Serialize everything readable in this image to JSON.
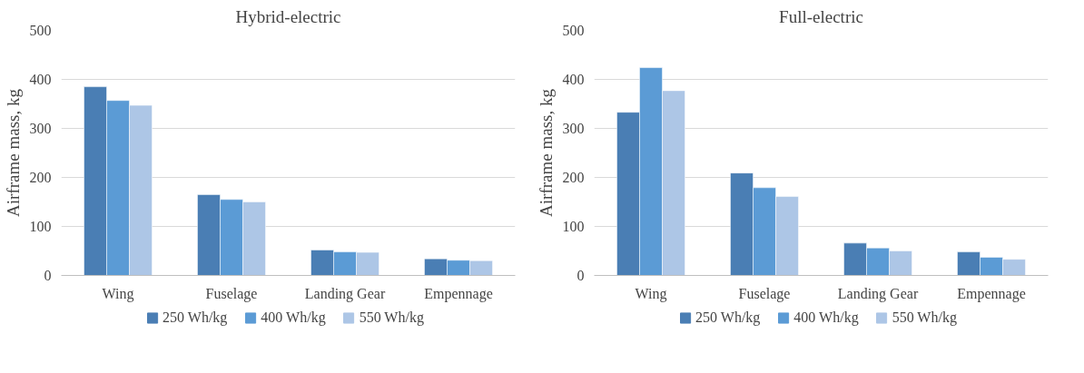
{
  "chart_data": [
    {
      "type": "bar",
      "title": "Hybrid-electric",
      "ylabel": "Airframe mass, kg",
      "categories": [
        "Wing",
        "Fuselage",
        "Landing Gear",
        "Empennage"
      ],
      "ylim": [
        0,
        500
      ],
      "yticks": [
        0,
        100,
        200,
        300,
        400,
        500
      ],
      "grid": "y",
      "legend": "bottom",
      "series": [
        {
          "name": "250 Wh/kg",
          "color": "#4a7eb4",
          "values": [
            385,
            165,
            52,
            34
          ]
        },
        {
          "name": "400 Wh/kg",
          "color": "#5b9bd5",
          "values": [
            357,
            155,
            48,
            31
          ]
        },
        {
          "name": "550 Wh/kg",
          "color": "#adc6e6",
          "values": [
            347,
            150,
            47,
            30
          ]
        }
      ]
    },
    {
      "type": "bar",
      "title": "Full-electric",
      "ylabel": "Airframe mass, kg",
      "categories": [
        "Wing",
        "Fuselage",
        "Landing Gear",
        "Empennage"
      ],
      "ylim": [
        0,
        500
      ],
      "yticks": [
        0,
        100,
        200,
        300,
        400,
        500
      ],
      "grid": "y",
      "legend": "bottom",
      "series": [
        {
          "name": "250 Wh/kg",
          "color": "#4a7eb4",
          "values": [
            333,
            209,
            66,
            48
          ]
        },
        {
          "name": "400 Wh/kg",
          "color": "#5b9bd5",
          "values": [
            424,
            179,
            56,
            37
          ]
        },
        {
          "name": "550 Wh/kg",
          "color": "#adc6e6",
          "values": [
            377,
            161,
            50,
            33
          ]
        }
      ]
    }
  ]
}
